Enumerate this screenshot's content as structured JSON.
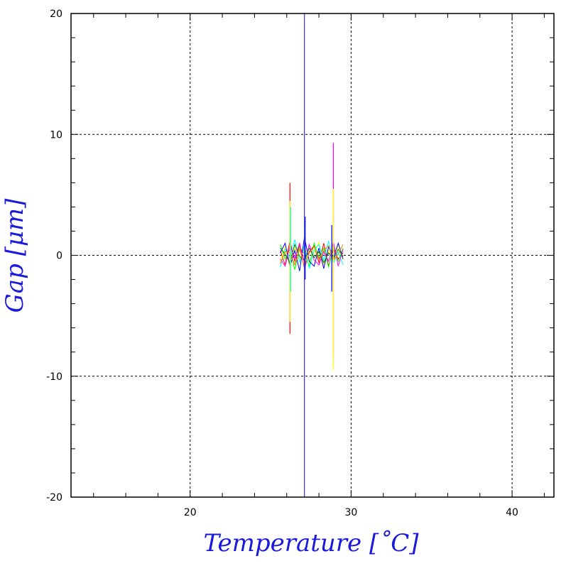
{
  "chart_data": {
    "type": "line",
    "title": "",
    "xlabel": "Temperature [˚C]",
    "ylabel": "Gap [μm]",
    "xlim": [
      12.6,
      42.6
    ],
    "ylim": [
      -20,
      20
    ],
    "xticks": [
      20,
      30,
      40
    ],
    "xtick_labels": [
      "20",
      "30",
      "40"
    ],
    "yticks": [
      -20,
      -10,
      0,
      10,
      20
    ],
    "ytick_labels": [
      "-20",
      "-10",
      "0",
      "10",
      "20"
    ],
    "grid": true,
    "legend": "none",
    "series_colors": [
      "#ff0000",
      "#ffff00",
      "#00ff00",
      "#00ffff",
      "#0000ff",
      "#ff00ff",
      "#008000",
      "#ff8000"
    ],
    "data_range": {
      "x": [
        25.5,
        29.6
      ],
      "y": [
        -2.5,
        2.0
      ]
    },
    "annotations_vertical_line": {
      "x": 27.1,
      "color": "#3333cc"
    },
    "series": [
      {
        "color": "#ff0000",
        "x": [
          25.6,
          25.9,
          26.2,
          26.5,
          26.8,
          27.1,
          27.4,
          27.7,
          28.0,
          28.3,
          28.6,
          28.9,
          29.2,
          29.5
        ],
        "y": [
          0.4,
          -0.8,
          1.2,
          -0.5,
          0.9,
          -1.1,
          0.3,
          0.8,
          -0.6,
          1.0,
          -0.9,
          0.5,
          -0.3,
          0.2
        ]
      },
      {
        "color": "#ffff00",
        "x": [
          25.6,
          25.9,
          26.2,
          26.5,
          26.8,
          27.1,
          27.4,
          27.7,
          28.0,
          28.3,
          28.6,
          28.9,
          29.2,
          29.5
        ],
        "y": [
          -0.5,
          0.7,
          -1.0,
          0.6,
          -0.4,
          0.9,
          -0.7,
          0.2,
          1.1,
          -0.8,
          0.4,
          -0.6,
          0.9,
          -0.4
        ]
      },
      {
        "color": "#00ff00",
        "x": [
          25.6,
          25.9,
          26.2,
          26.5,
          26.8,
          27.1,
          27.4,
          27.7,
          28.0,
          28.3,
          28.6,
          28.9,
          29.2,
          29.5
        ],
        "y": [
          0.9,
          -0.3,
          0.5,
          -1.2,
          0.7,
          0.1,
          -0.9,
          1.0,
          -0.2,
          0.6,
          -1.0,
          0.8,
          -0.5,
          0.6
        ]
      },
      {
        "color": "#00ffff",
        "x": [
          25.6,
          25.9,
          26.2,
          26.5,
          26.8,
          27.1,
          27.4,
          27.7,
          28.0,
          28.3,
          28.6,
          28.9,
          29.2,
          29.5
        ],
        "y": [
          -1.0,
          0.5,
          -0.2,
          1.3,
          -0.6,
          0.8,
          -1.1,
          0.4,
          0.9,
          -0.4,
          1.2,
          -0.7,
          0.3,
          -0.8
        ]
      },
      {
        "color": "#0000ff",
        "x": [
          25.6,
          25.9,
          26.2,
          26.5,
          26.8,
          27.1,
          27.4,
          27.7,
          28.0,
          28.3,
          28.6,
          28.9,
          29.2,
          29.5
        ],
        "y": [
          0.2,
          1.0,
          -0.9,
          0.4,
          -1.3,
          1.5,
          -0.5,
          -0.9,
          0.6,
          -1.1,
          0.7,
          -0.2,
          1.0,
          -0.3
        ]
      },
      {
        "color": "#ff00ff",
        "x": [
          25.6,
          25.9,
          26.2,
          26.5,
          26.8,
          27.1,
          27.4,
          27.7,
          28.0,
          28.3,
          28.6,
          28.9,
          29.2,
          29.5
        ],
        "y": [
          -0.3,
          -0.9,
          0.8,
          -0.2,
          1.0,
          -0.6,
          0.9,
          -0.4,
          -0.8,
          0.3,
          -0.5,
          1.1,
          -0.9,
          0.5
        ]
      },
      {
        "color": "#008000",
        "x": [
          25.6,
          25.9,
          26.2,
          26.5,
          26.8,
          27.1,
          27.4,
          27.7,
          28.0,
          28.3,
          28.6,
          28.9,
          29.2,
          29.5
        ],
        "y": [
          0.6,
          0.1,
          -0.6,
          0.9,
          -0.1,
          -0.4,
          0.6,
          -0.2,
          0.3,
          -0.6,
          0.2,
          -0.3,
          0.5,
          -0.1
        ]
      },
      {
        "color": "#ff8000",
        "x": [
          25.6,
          25.9,
          26.2,
          26.5,
          26.8,
          27.1,
          27.4,
          27.7,
          28.0,
          28.3,
          28.6,
          28.9,
          29.2,
          29.5
        ],
        "y": [
          -0.7,
          0.3,
          0.2,
          -0.8,
          0.5,
          -0.9,
          0.2,
          0.7,
          -0.3,
          0.4,
          0.8,
          -0.4,
          0.1,
          0.9
        ]
      }
    ],
    "spikes": [
      {
        "color": "#ff0000",
        "x": 26.2,
        "y": [
          -6.5,
          6.0
        ]
      },
      {
        "color": "#ffff00",
        "x": 26.2,
        "y": [
          -5.5,
          4.5
        ]
      },
      {
        "color": "#00ffff",
        "x": 26.25,
        "y": [
          -3.0,
          4.0
        ]
      },
      {
        "color": "#ff00ff",
        "x": 28.9,
        "y": [
          -8.5,
          9.3
        ]
      },
      {
        "color": "#ffff00",
        "x": 28.9,
        "y": [
          -9.5,
          5.5
        ]
      },
      {
        "color": "#0000ff",
        "x": 28.8,
        "y": [
          -3.0,
          2.5
        ]
      },
      {
        "color": "#0000ff",
        "x": 27.15,
        "y": [
          -2.0,
          3.2
        ]
      }
    ]
  }
}
